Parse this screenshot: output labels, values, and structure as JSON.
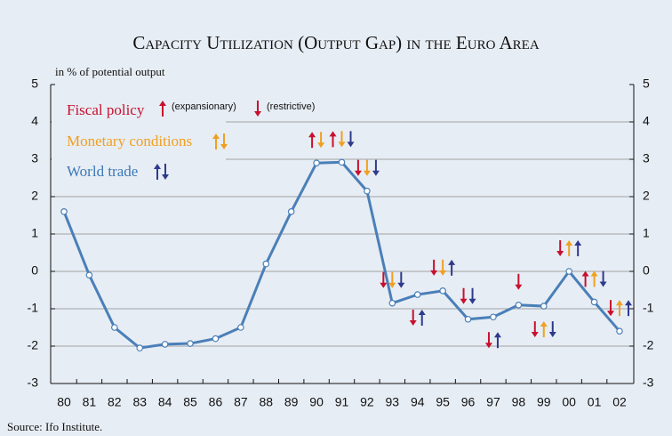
{
  "chart_data": {
    "type": "line",
    "title": "Capacity Utilization (Output Gap) in the Euro Area",
    "y_axis_label": "in % of potential output",
    "source": "Source: Ifo Institute.",
    "categories": [
      "80",
      "81",
      "82",
      "83",
      "84",
      "85",
      "86",
      "87",
      "88",
      "89",
      "90",
      "91",
      "92",
      "93",
      "94",
      "95",
      "96",
      "97",
      "98",
      "99",
      "00",
      "01",
      "02"
    ],
    "series": [
      {
        "name": "Output gap",
        "color": "#4a7fb8",
        "values": [
          1.6,
          -0.1,
          -1.5,
          -2.05,
          -1.95,
          -1.93,
          -1.8,
          -1.5,
          0.2,
          1.6,
          2.9,
          2.92,
          2.15,
          -0.85,
          -0.62,
          -0.52,
          -1.28,
          -1.22,
          -0.9,
          -0.93,
          0.0,
          -0.82,
          -1.6
        ]
      }
    ],
    "ylim": [
      -3,
      5
    ],
    "yticks": [
      -3,
      -2,
      -1,
      0,
      1,
      2,
      3,
      4,
      5
    ],
    "grid": true,
    "legend": {
      "fiscal": "Fiscal policy",
      "expansionary": "(expansionary)",
      "restrictive": "(restrictive)",
      "monetary": "Monetary conditions",
      "trade": "World trade"
    },
    "indicator_colors": {
      "fiscal": "#c8102e",
      "monetary": "#f0a020",
      "trade": "#2e3a8c"
    },
    "indicators": [
      {
        "index": 10,
        "fiscal": "up",
        "monetary": "down"
      },
      {
        "index": 11,
        "fiscal": "up",
        "monetary": "down",
        "trade": "down"
      },
      {
        "index": 12,
        "fiscal": "down",
        "monetary": "down",
        "trade": "down"
      },
      {
        "index": 13,
        "fiscal": "down",
        "monetary": "down",
        "trade": "down"
      },
      {
        "index": 14,
        "fiscal": "down",
        "trade": "up"
      },
      {
        "index": 15,
        "fiscal": "down",
        "monetary": "down",
        "trade": "up"
      },
      {
        "index": 16,
        "fiscal": "down",
        "trade": "down"
      },
      {
        "index": 17,
        "fiscal": "down",
        "trade": "up"
      },
      {
        "index": 18,
        "fiscal": "down"
      },
      {
        "index": 19,
        "fiscal": "down",
        "monetary": "up",
        "trade": "down"
      },
      {
        "index": 20,
        "fiscal": "down",
        "monetary": "up",
        "trade": "up"
      },
      {
        "index": 21,
        "fiscal": "up",
        "monetary": "up",
        "trade": "down"
      },
      {
        "index": 22,
        "fiscal": "down",
        "monetary": "up",
        "trade": "up"
      }
    ]
  }
}
